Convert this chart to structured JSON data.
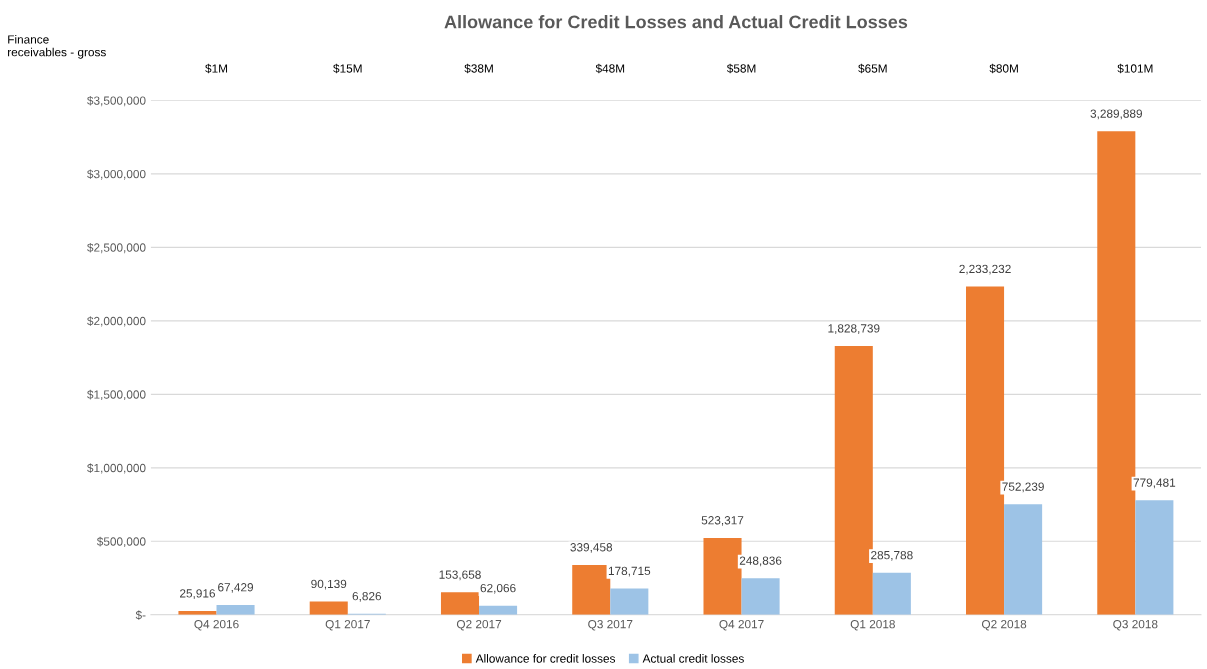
{
  "chart_data": {
    "type": "bar",
    "title": "Allowance for Credit Losses and Actual Credit Losses",
    "categories": [
      "Q4 2016",
      "Q1 2017",
      "Q2 2017",
      "Q3 2017",
      "Q4 2017",
      "Q1 2018",
      "Q2 2018",
      "Q3 2018"
    ],
    "series": [
      {
        "name": "Allowance for credit losses",
        "color": "#ed7d31",
        "values": [
          25916,
          90139,
          153658,
          339458,
          523317,
          1828739,
          2233232,
          3289889
        ],
        "value_labels": [
          "25,916",
          "90,139",
          "153,658",
          "339,458",
          "523,317",
          "1,828,739",
          "2,233,232",
          "3,289,889"
        ]
      },
      {
        "name": "Actual credit losses",
        "color": "#9dc3e6",
        "values": [
          67429,
          6826,
          62066,
          178715,
          248836,
          285788,
          752239,
          779481
        ],
        "value_labels": [
          "67,429",
          "6,826",
          "62,066",
          "178,715",
          "248,836",
          "285,788",
          "752,239",
          "779,481"
        ]
      }
    ],
    "ylim": [
      0,
      3500000
    ],
    "yticks": [
      {
        "value": 0,
        "label": "$-"
      },
      {
        "value": 500000,
        "label": "$500,000"
      },
      {
        "value": 1000000,
        "label": "$1,000,000"
      },
      {
        "value": 1500000,
        "label": "$1,500,000"
      },
      {
        "value": 2000000,
        "label": "$2,000,000"
      },
      {
        "value": 2500000,
        "label": "$2,500,000"
      },
      {
        "value": 3000000,
        "label": "$3,000,000"
      },
      {
        "value": 3500000,
        "label": "$3,500,000"
      }
    ],
    "grid": "y",
    "legend": "bottom",
    "annotations": [
      "Finance\nreceivables - gross",
      "$1M",
      "$15M",
      "$38M",
      "$48M",
      "$58M",
      "$65M",
      "$80M",
      "$101M"
    ]
  }
}
